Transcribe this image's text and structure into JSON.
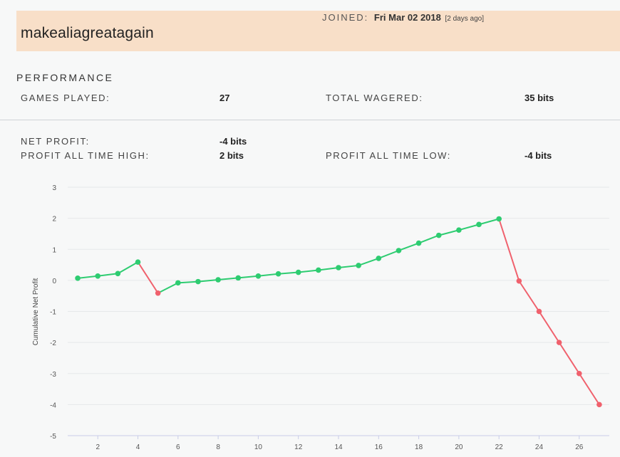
{
  "profile": {
    "username": "makealiagreatagain",
    "joined_label": "JOINED:",
    "joined_date": "Fri Mar 02 2018",
    "joined_ago": "[2 days ago]"
  },
  "performance": {
    "title": "PERFORMANCE",
    "games_played_label": "GAMES PLAYED:",
    "games_played": "27",
    "total_wagered_label": "TOTAL WAGERED:",
    "total_wagered": "35 bits",
    "net_profit_label": "NET PROFIT:",
    "net_profit": "-4 bits",
    "ath_label": "PROFIT ALL TIME HIGH:",
    "ath": "2 bits",
    "atl_label": "PROFIT ALL TIME LOW:",
    "atl": "-4 bits"
  },
  "colors": {
    "up": "#2ecc71",
    "down": "#f0616d",
    "header_bg": "#f8dfc8"
  },
  "chart_data": {
    "type": "line",
    "ylabel": "Cumulative Net Profit",
    "xlabel": "",
    "ylim": [
      -5,
      3
    ],
    "xlim": [
      0.5,
      27.5
    ],
    "yticks": [
      3,
      2,
      1,
      0,
      -1,
      -2,
      -3,
      -4,
      -5
    ],
    "xticks": [
      2,
      4,
      6,
      8,
      10,
      12,
      14,
      16,
      18,
      20,
      22,
      24,
      26
    ],
    "grid": true,
    "x": [
      1,
      2,
      3,
      4,
      5,
      6,
      7,
      8,
      9,
      10,
      11,
      12,
      13,
      14,
      15,
      16,
      17,
      18,
      19,
      20,
      21,
      22,
      23,
      24,
      25,
      26,
      27
    ],
    "values": [
      0.07,
      0.14,
      0.22,
      0.59,
      -0.41,
      -0.08,
      -0.04,
      0.02,
      0.08,
      0.14,
      0.21,
      0.26,
      0.33,
      0.41,
      0.48,
      0.71,
      0.96,
      1.2,
      1.45,
      1.62,
      1.8,
      1.98,
      -0.02,
      -1.0,
      -2.0,
      -3.0,
      -4.0
    ]
  }
}
